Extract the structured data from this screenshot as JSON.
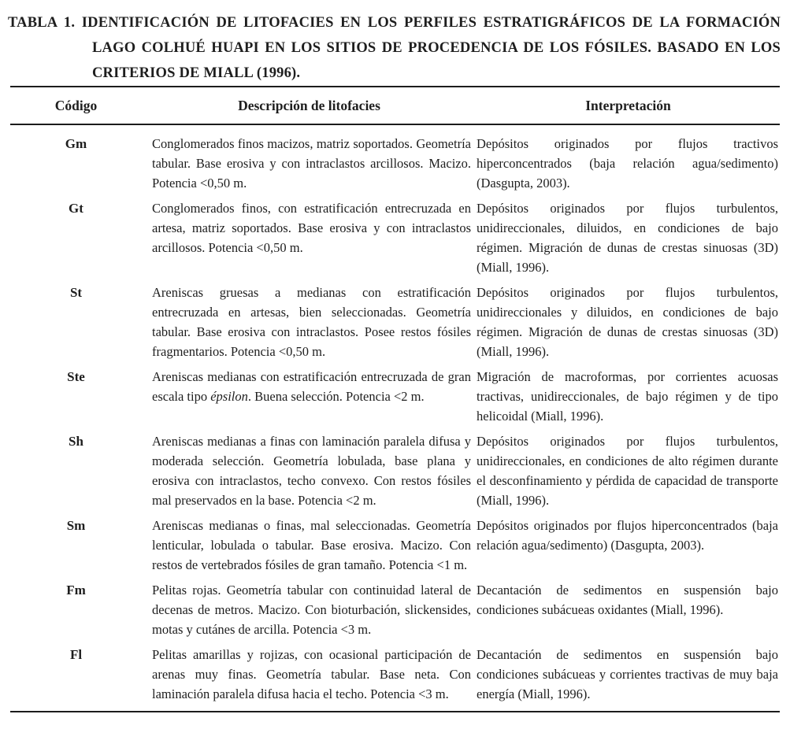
{
  "title": {
    "label": "TABLA 1.",
    "text": "IDENTIFICACIÓN DE LITOFACIES EN LOS PERFILES ESTRATIGRÁFICOS DE LA FORMACIÓN LAGO COLHUÉ HUAPI EN LOS SITIOS DE PROCEDENCIA DE LOS FÓSILES. BASADO EN LOS CRITERIOS DE MIALL (1996)."
  },
  "table": {
    "columns": {
      "codigo": "Código",
      "descripcion": "Descripción de litofacies",
      "interpretacion": "Interpretación"
    },
    "rows": [
      {
        "codigo": "Gm",
        "descripcion": "Conglomerados finos macizos, matriz soportados. Geometría tabular. Base erosiva y con intraclastos arcillosos. Macizo. Potencia <0,50 m.",
        "interpretacion": "Depósitos originados por flujos tractivos hiperconcentrados (baja relación agua/sedimento) (Dasgupta, 2003)."
      },
      {
        "codigo": "Gt",
        "descripcion": "Conglomerados finos, con estratificación entrecruzada en artesa, matriz soportados. Base erosiva y con intraclastos arcillosos. Potencia <0,50 m.",
        "interpretacion": "Depósitos originados por flujos turbulentos, unidireccionales, diluidos, en condiciones de bajo régimen. Migración de dunas de crestas sinuosas (3D) (Miall, 1996)."
      },
      {
        "codigo": "St",
        "descripcion": "Areniscas gruesas a medianas con estratificación entrecruzada en artesas, bien seleccionadas. Geometría tabular. Base erosiva con intraclastos. Posee restos fósiles fragmentarios. Potencia <0,50 m.",
        "interpretacion": "Depósitos originados por flujos turbulentos, unidireccionales y diluidos, en condiciones de bajo régimen. Migración de dunas de crestas sinuosas (3D) (Miall, 1996)."
      },
      {
        "codigo": "Ste",
        "descripcion": "Areniscas medianas con estratificación entrecruzada de gran escala tipo *épsilon*. Buena selección. Potencia <2 m.",
        "interpretacion": "Migración de macroformas, por corrientes acuosas tractivas, unidireccionales, de bajo régimen y de tipo helicoidal (Miall, 1996)."
      },
      {
        "codigo": "Sh",
        "descripcion": "Areniscas medianas a finas con laminación paralela difusa y moderada selección. Geometría lobulada, base plana y erosiva con intraclastos, techo convexo. Con restos fósiles mal preservados en la base. Potencia <2 m.",
        "interpretacion": "Depósitos originados por flujos turbulentos, unidireccionales, en condiciones de alto régimen durante el desconfinamiento y pérdida de capacidad de transporte (Miall, 1996)."
      },
      {
        "codigo": "Sm",
        "descripcion": "Areniscas medianas o finas, mal seleccionadas. Geometría lenticular, lobulada o tabular. Base erosiva. Macizo. Con restos de vertebrados fósiles de gran tamaño. Potencia <1 m.",
        "interpretacion": "Depósitos originados por flujos hiperconcentrados (baja relación agua/sedimento) (Dasgupta, 2003)."
      },
      {
        "codigo": "Fm",
        "descripcion": "Pelitas rojas. Geometría tabular con continuidad lateral de decenas de metros. Macizo. Con bioturbación, slickensides, motas y cutánes de arcilla. Potencia <3 m.",
        "interpretacion": "Decantación de sedimentos en suspensión bajo condiciones subácueas oxidantes (Miall, 1996)."
      },
      {
        "codigo": "Fl",
        "descripcion": "Pelitas amarillas y rojizas, con ocasional participación de arenas muy finas. Geometría tabular. Base neta. Con laminación paralela difusa hacia el techo. Potencia <3 m.",
        "interpretacion": "Decantación de sedimentos en suspensión bajo condiciones subácueas y corrientes tractivas de muy baja energía (Miall, 1996)."
      }
    ]
  }
}
